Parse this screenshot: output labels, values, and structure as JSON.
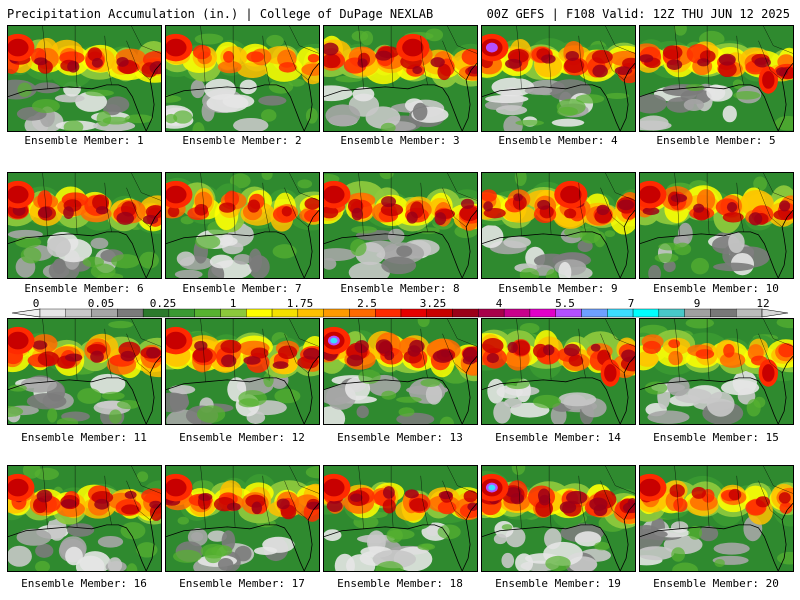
{
  "header": {
    "left_title": "Precipitation Accumulation (in.) | College of DuPage NEXLAB",
    "right_title": "00Z GEFS | F108 Valid: 12Z THU JUN 12 2025"
  },
  "colorbar": {
    "tick_labels": [
      "0",
      "0.05",
      "0.25",
      "1",
      "1.75",
      "2.5",
      "3.25",
      "4",
      "5.5",
      "7",
      "9",
      "12"
    ],
    "colors": [
      "#e6e6e6",
      "#c8c8c8",
      "#a6a6a6",
      "#7b7b7b",
      "#2c7a2c",
      "#3a9a32",
      "#57b230",
      "#8cc83c",
      "#ffff00",
      "#f5e000",
      "#ffc000",
      "#ff9a00",
      "#ff6a00",
      "#ff2a00",
      "#e60000",
      "#c80000",
      "#9b0018",
      "#a8004a",
      "#c8008c",
      "#e100c8",
      "#b450ff",
      "#6ea0ff",
      "#3cdcff",
      "#00ffff",
      "#48c8c8",
      "#a0a0a0",
      "#787878",
      "#bcbcbc"
    ]
  },
  "members": [
    {
      "label": "Ensemble Member: 1",
      "intensity": 0.78,
      "peak": "west"
    },
    {
      "label": "Ensemble Member: 2",
      "intensity": 0.55,
      "peak": "west"
    },
    {
      "label": "Ensemble Member: 3",
      "intensity": 0.85,
      "peak": "center"
    },
    {
      "label": "Ensemble Member: 4",
      "intensity": 0.9,
      "peak": "west"
    },
    {
      "label": "Ensemble Member: 5",
      "intensity": 0.8,
      "peak": "east"
    },
    {
      "label": "Ensemble Member: 6",
      "intensity": 0.75,
      "peak": "west"
    },
    {
      "label": "Ensemble Member: 7",
      "intensity": 0.6,
      "peak": "west"
    },
    {
      "label": "Ensemble Member: 8",
      "intensity": 0.8,
      "peak": "west"
    },
    {
      "label": "Ensemble Member: 9",
      "intensity": 0.85,
      "peak": "center"
    },
    {
      "label": "Ensemble Member: 10",
      "intensity": 0.75,
      "peak": "west"
    },
    {
      "label": "Ensemble Member: 11",
      "intensity": 0.75,
      "peak": "west"
    },
    {
      "label": "Ensemble Member: 12",
      "intensity": 0.8,
      "peak": "west"
    },
    {
      "label": "Ensemble Member: 13",
      "intensity": 0.92,
      "peak": "west"
    },
    {
      "label": "Ensemble Member: 14",
      "intensity": 0.85,
      "peak": "east"
    },
    {
      "label": "Ensemble Member: 15",
      "intensity": 0.55,
      "peak": "east"
    },
    {
      "label": "Ensemble Member: 16",
      "intensity": 0.8,
      "peak": "west"
    },
    {
      "label": "Ensemble Member: 17",
      "intensity": 0.75,
      "peak": "west"
    },
    {
      "label": "Ensemble Member: 18",
      "intensity": 0.8,
      "peak": "west"
    },
    {
      "label": "Ensemble Member: 19",
      "intensity": 0.92,
      "peak": "west"
    },
    {
      "label": "Ensemble Member: 20",
      "intensity": 0.7,
      "peak": "west"
    }
  ]
}
